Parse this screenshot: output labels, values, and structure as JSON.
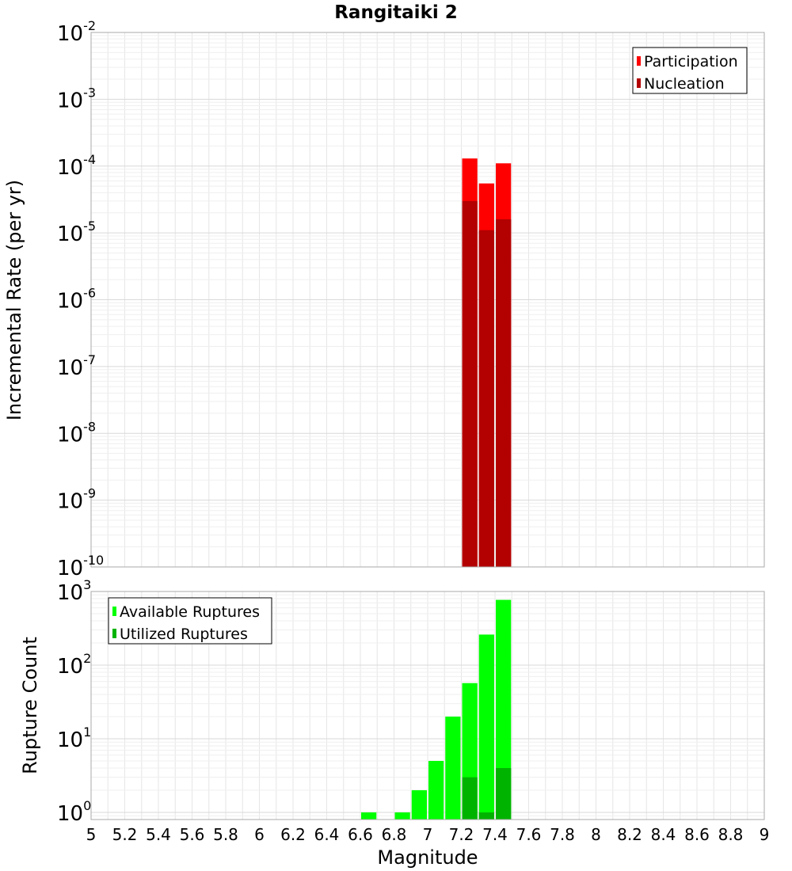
{
  "title": "Rangitaiki 2",
  "colors": {
    "participation": "#ff0000",
    "nucleation": "#b30000",
    "available": "#00ff00",
    "utilized": "#00b300",
    "grid": "#e6e6e6",
    "border": "#aaaaaa"
  },
  "chart_data": [
    {
      "type": "bar",
      "scale": "log",
      "title": "Rangitaiki 2",
      "ylabel": "Incremental Rate (per yr)",
      "xlim": [
        5,
        9
      ],
      "ylim": [
        1e-10,
        0.01
      ],
      "grid": true,
      "legend_position": "top-right",
      "x_ticks": [
        "5",
        "5.2",
        "5.4",
        "5.6",
        "5.8",
        "6",
        "6.2",
        "6.4",
        "6.6",
        "6.8",
        "7",
        "7.2",
        "7.4",
        "7.6",
        "7.8",
        "8",
        "8.2",
        "8.4",
        "8.6",
        "8.8",
        "9"
      ],
      "y_ticks": [
        {
          "base": "10",
          "exp": "-2"
        },
        {
          "base": "10",
          "exp": "-3"
        },
        {
          "base": "10",
          "exp": "-4"
        },
        {
          "base": "10",
          "exp": "-5"
        },
        {
          "base": "10",
          "exp": "-6"
        },
        {
          "base": "10",
          "exp": "-7"
        },
        {
          "base": "10",
          "exp": "-8"
        },
        {
          "base": "10",
          "exp": "-9"
        },
        {
          "base": "10",
          "exp": "-10"
        }
      ],
      "series": [
        {
          "name": "Participation",
          "x": [
            7.25,
            7.35,
            7.45
          ],
          "values": [
            0.00013,
            5.5e-05,
            0.00011
          ]
        },
        {
          "name": "Nucleation",
          "x": [
            7.25,
            7.35,
            7.45
          ],
          "values": [
            3e-05,
            1.1e-05,
            1.6e-05
          ]
        }
      ]
    },
    {
      "type": "bar",
      "scale": "log",
      "xlabel": "Magnitude",
      "ylabel": "Rupture Count",
      "xlim": [
        5,
        9
      ],
      "ylim": [
        0.8,
        1000
      ],
      "grid": true,
      "legend_position": "top-left",
      "y_ticks": [
        {
          "base": "10",
          "exp": "3"
        },
        {
          "base": "10",
          "exp": "2"
        },
        {
          "base": "10",
          "exp": "1"
        },
        {
          "base": "10",
          "exp": "0"
        }
      ],
      "series": [
        {
          "name": "Available Ruptures",
          "x": [
            6.65,
            6.85,
            6.95,
            7.05,
            7.15,
            7.25,
            7.35,
            7.45
          ],
          "values": [
            1,
            1,
            2,
            5,
            20,
            57,
            260,
            770
          ]
        },
        {
          "name": "Utilized Ruptures",
          "x": [
            7.25,
            7.35,
            7.45
          ],
          "values": [
            3,
            1,
            4
          ]
        }
      ]
    }
  ]
}
